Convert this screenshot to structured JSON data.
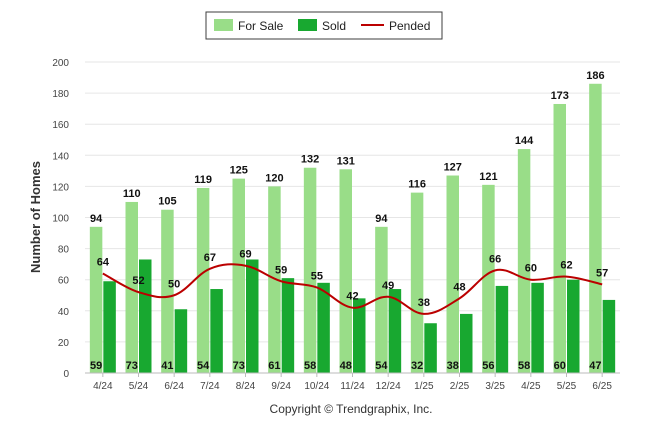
{
  "chart_data": {
    "type": "bar",
    "categories": [
      "4/24",
      "5/24",
      "6/24",
      "7/24",
      "8/24",
      "9/24",
      "10/24",
      "11/24",
      "12/24",
      "1/25",
      "2/25",
      "3/25",
      "4/25",
      "5/25",
      "6/25"
    ],
    "series": [
      {
        "name": "For Sale",
        "type": "bar",
        "color": "#99dd88",
        "values": [
          94,
          110,
          105,
          119,
          125,
          120,
          132,
          131,
          94,
          116,
          127,
          121,
          144,
          173,
          186
        ]
      },
      {
        "name": "Sold",
        "type": "bar",
        "color": "#18a830",
        "values": [
          59,
          73,
          41,
          54,
          73,
          61,
          58,
          48,
          54,
          32,
          38,
          56,
          58,
          60,
          47
        ]
      },
      {
        "name": "Pended",
        "type": "line",
        "color": "#bb0000",
        "values": [
          64,
          52,
          50,
          67,
          69,
          59,
          55,
          42,
          49,
          38,
          48,
          66,
          60,
          62,
          57
        ]
      }
    ],
    "xlabel": "",
    "ylabel": "Number of Homes",
    "ylim": [
      0,
      200
    ],
    "yticks": [
      0,
      20,
      40,
      60,
      80,
      100,
      120,
      140,
      160,
      180,
      200
    ],
    "grid": true,
    "legend_position": "top-center",
    "footer": "Copyright © Trendgraphix, Inc."
  }
}
